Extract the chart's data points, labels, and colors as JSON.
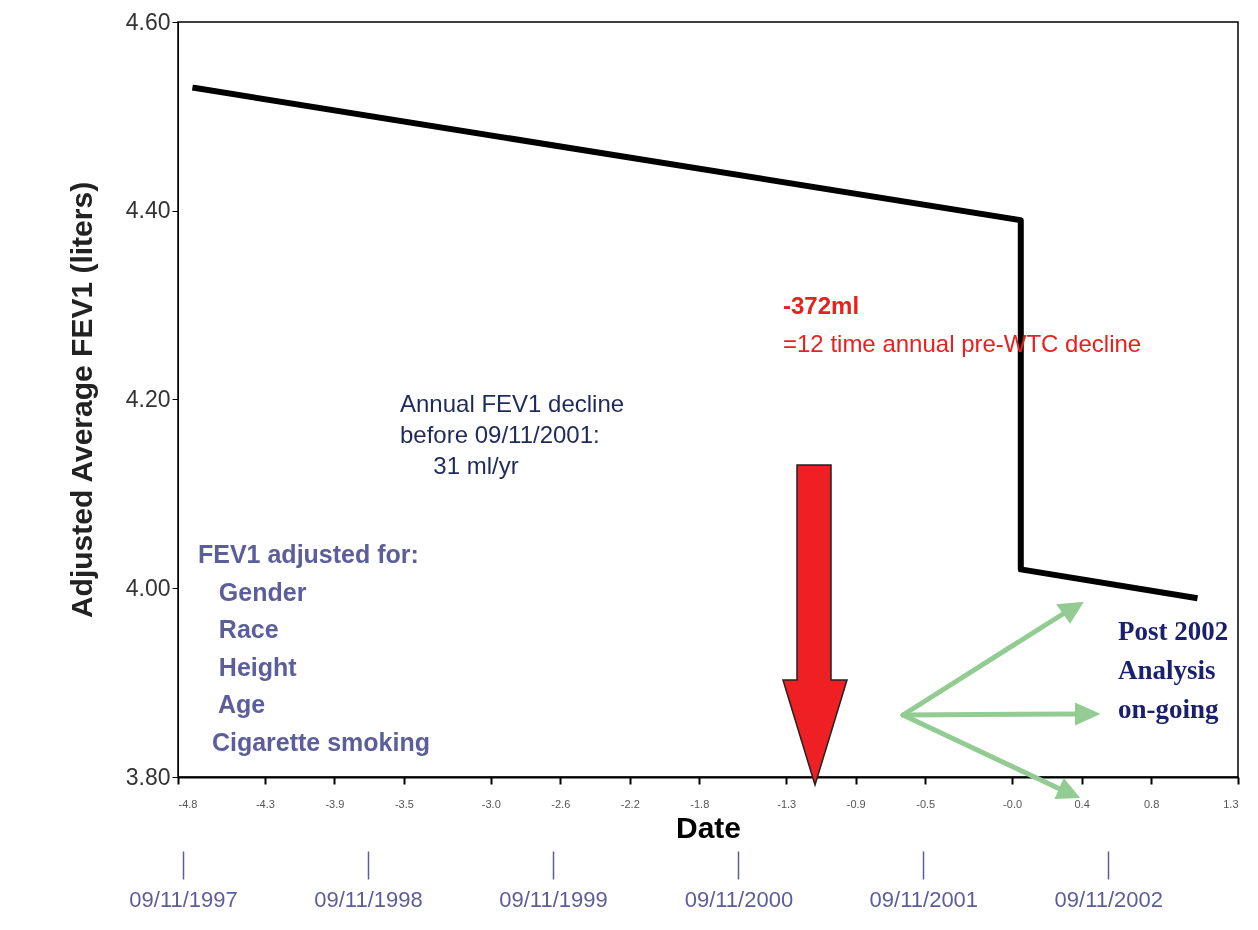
{
  "chart_data": {
    "type": "line",
    "xlabel": "Date",
    "ylabel": "Adjusted Average FEV1 (liters)",
    "x": [
      -4.7,
      0.05,
      0.05,
      1.05
    ],
    "series": [
      {
        "color": "#000000",
        "values": [
          4.53,
          4.39,
          4.02,
          3.99
        ]
      }
    ],
    "xlim": [
      -4.8,
      1.3
    ],
    "xticks": [
      -4.8,
      -4.3,
      -3.9,
      -3.5,
      {
        "value": -3,
        "label": "-3.0"
      },
      -2.6,
      -2.2,
      -1.8,
      -1.3,
      -0.9,
      -0.5,
      {
        "value": 0,
        "label": "-0.0"
      },
      0.4,
      0.8,
      1.3
    ],
    "ylim": [
      3.8,
      4.6
    ],
    "yticks": [
      {
        "value": 3.8,
        "label": "3.80"
      },
      {
        "value": 4.0,
        "label": "4.00"
      },
      {
        "value": 4.2,
        "label": "4.20"
      },
      {
        "value": 4.4,
        "label": "4.40"
      },
      {
        "value": 4.6,
        "label": "4.60"
      }
    ],
    "x2lim": [
      "1997-09-01",
      "2003-05-25"
    ],
    "x2ticks": [
      {
        "value": "1997-09-11",
        "label": "09/11/1997"
      },
      {
        "value": "1998-09-11",
        "label": "09/11/1998"
      },
      {
        "value": "1999-09-11",
        "label": "09/11/1999"
      },
      {
        "value": "2000-09-11",
        "label": "09/11/2000"
      },
      {
        "value": "2001-09-11",
        "label": "09/11/2001"
      },
      {
        "value": "2002-09-11",
        "label": "09/11/2002"
      }
    ],
    "annotations": [
      "-372ml",
      "=12 time annual pre-WTC decline",
      "Annual FEV1 decline\nbefore 09/11/2001:\n     31 ml/yr",
      "FEV1 adjusted for:\n   Gender\n   Race\n   Height\n   Age\n  Cigarette smoking",
      "Post 2002\nAnalysis\non-going"
    ]
  }
}
